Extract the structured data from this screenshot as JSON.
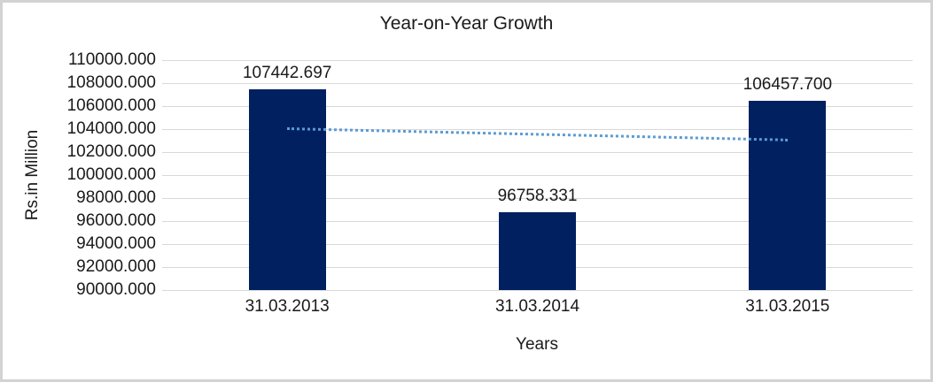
{
  "chart_data": {
    "type": "bar",
    "title": "Year-on-Year Growth",
    "xlabel": "Years",
    "ylabel": "Rs.in Million",
    "categories": [
      "31.03.2013",
      "31.03.2014",
      "31.03.2015"
    ],
    "values": [
      107442.697,
      96758.331,
      106457.7
    ],
    "data_labels": [
      "107442.697",
      "96758.331",
      "106457.700"
    ],
    "ylim": [
      90000,
      110000
    ],
    "ytick_step": 2000,
    "y_ticks": [
      "110000.000",
      "108000.000",
      "106000.000",
      "104000.000",
      "102000.000",
      "100000.000",
      "98000.000",
      "96000.000",
      "94000.000",
      "92000.000",
      "90000.000"
    ],
    "grid": "horizontal",
    "legend": "none",
    "trendline": {
      "type": "linear",
      "style": "dotted",
      "start_value": 104045,
      "end_value": 103060,
      "span": "first-category-center-to-last-category-center"
    },
    "colors": {
      "bar": "#002060",
      "trendline": "#5B9BD5",
      "gridline": "#D9D9D9",
      "text": "#1A1A1A",
      "border": "#D3D3D3",
      "background": "#FFFFFF"
    }
  }
}
